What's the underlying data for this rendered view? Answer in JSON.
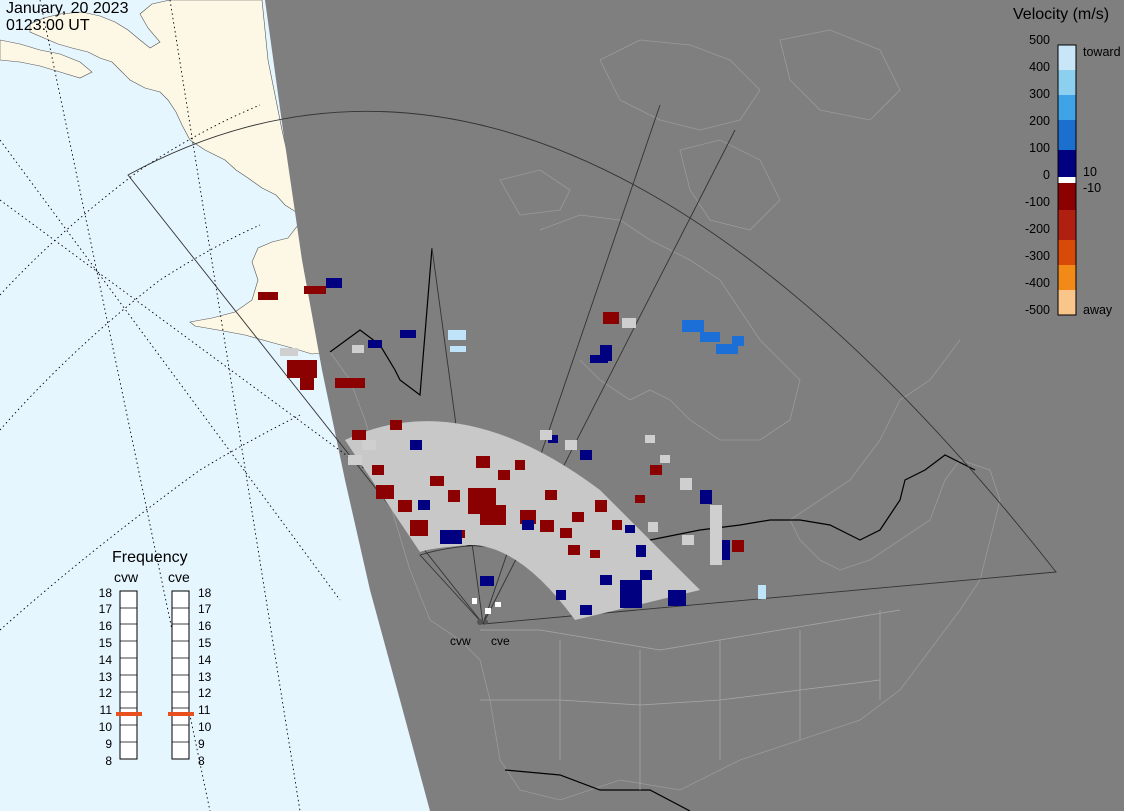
{
  "header": {
    "date": "January, 20 2023",
    "time": "0123:00 UT"
  },
  "colorbar": {
    "title": "Velocity (m/s)",
    "ticks": [
      "500",
      "400",
      "300",
      "200",
      "100",
      "0",
      "-100",
      "-200",
      "-300",
      "-400",
      "-500"
    ],
    "toward_label": "toward",
    "away_label": "away",
    "threshold_pos": "10",
    "threshold_neg": "-10",
    "colors": [
      "#c8e6f8",
      "#8ccfee",
      "#3fa3e8",
      "#1a6fcf",
      "#0a2a99",
      "#000080",
      "#ffffff",
      "#8b0000",
      "#b02010",
      "#d84a08",
      "#f28a18",
      "#f8c58a",
      "#fbe0c4"
    ]
  },
  "frequency": {
    "title": "Frequency",
    "radars": [
      "cvw",
      "cve"
    ],
    "scale": [
      "18",
      "17",
      "16",
      "15",
      "14",
      "13",
      "12",
      "11",
      "10",
      "9",
      "8"
    ],
    "selected": {
      "cvw": 11,
      "cve": 11
    },
    "indicator_color": "#e8501e"
  },
  "sites": [
    "cvw",
    "cve"
  ],
  "map_colors": {
    "night": "#7f7f7f",
    "ocean": "#e6f6ff",
    "land_day": "#fdf8e6",
    "near_range": "#c8c8c8",
    "receding": "#8b0000",
    "approaching": "#000080",
    "fast_approaching": "#1c6fd6",
    "very_fast_approaching": "#bfe4fa"
  }
}
